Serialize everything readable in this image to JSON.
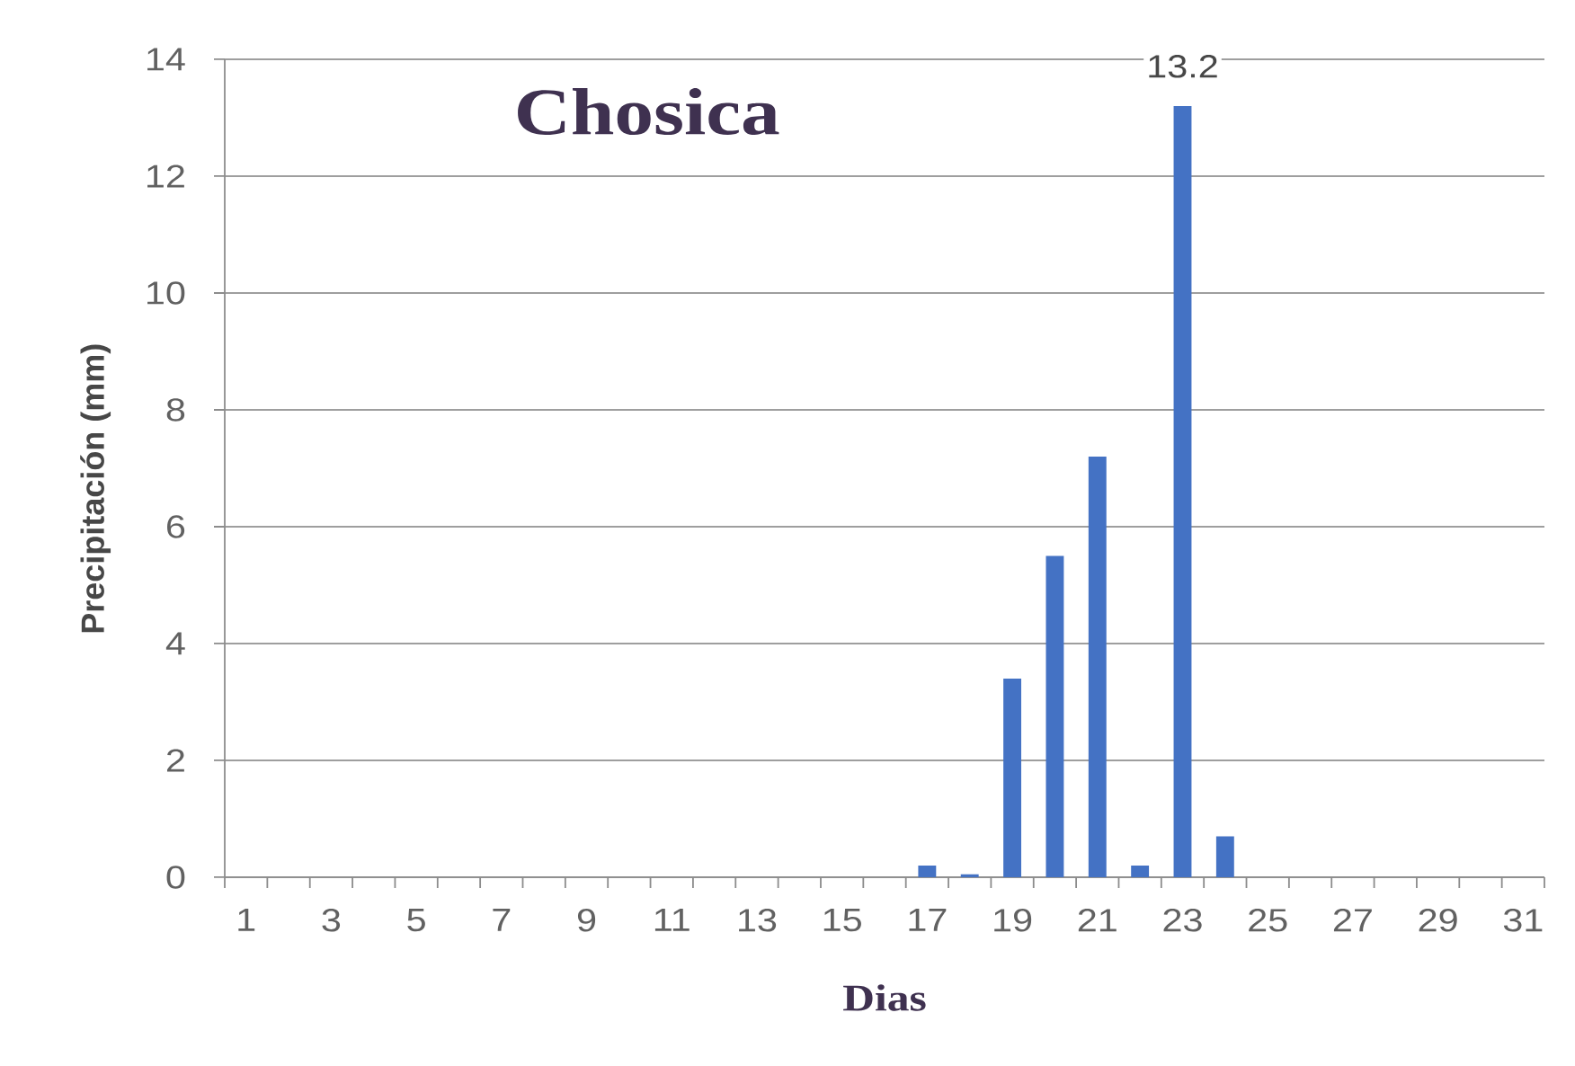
{
  "chart_data": {
    "type": "bar",
    "title": "Chosica",
    "xlabel": "Dias",
    "ylabel": "Precipitación (mm)",
    "categories": [
      "1",
      null,
      "3",
      null,
      "5",
      null,
      "7",
      null,
      "9",
      null,
      "11",
      null,
      "13",
      null,
      "15",
      null,
      "17",
      null,
      "19",
      null,
      "21",
      null,
      "23",
      null,
      "25",
      null,
      "27",
      null,
      "29",
      null,
      "31"
    ],
    "values": [
      0,
      0,
      0,
      0,
      0,
      0,
      0,
      0,
      0,
      0,
      0,
      0,
      0,
      0,
      0,
      0,
      0.2,
      0.05,
      3.4,
      5.5,
      7.2,
      0.2,
      13.2,
      0.7,
      0,
      0,
      0,
      0,
      0,
      0,
      0
    ],
    "color": "#4472c4",
    "value_labels": [
      null,
      null,
      null,
      null,
      null,
      null,
      null,
      null,
      null,
      null,
      null,
      null,
      null,
      null,
      null,
      null,
      null,
      null,
      null,
      null,
      null,
      null,
      "13.2",
      null,
      null,
      null,
      null,
      null,
      null,
      null,
      null
    ],
    "ylim": [
      0,
      14
    ],
    "yticks": [
      0,
      2,
      4,
      6,
      8,
      10,
      12,
      14
    ],
    "grid": "y"
  }
}
